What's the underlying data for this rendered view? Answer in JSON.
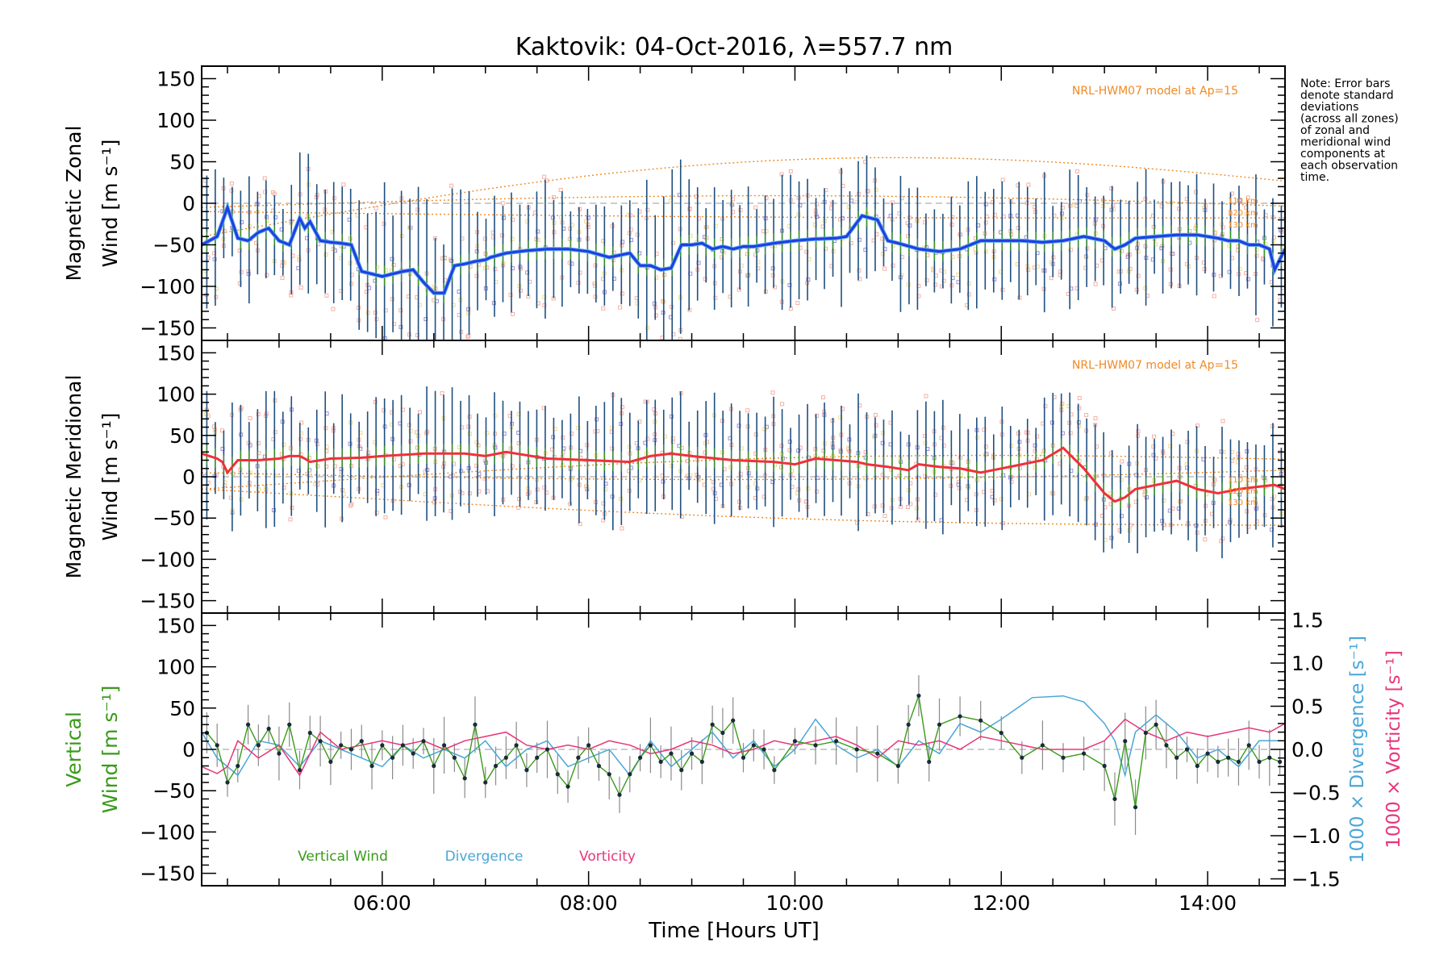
{
  "chart_data": {
    "type": "line",
    "title": "Kaktovik: 04-Oct-2016, λ=557.7 nm",
    "xlabel": "Time [Hours UT]",
    "xlim": [
      4.25,
      14.75
    ],
    "xticks": [
      6,
      8,
      10,
      12,
      14
    ],
    "xtick_labels": [
      "06:00",
      "08:00",
      "10:00",
      "12:00",
      "14:00"
    ],
    "note": [
      "Note: Error bars",
      "denote standard",
      "deviations",
      "(across all zones)",
      "of zonal and",
      "meridional wind",
      "components at",
      "each observation",
      "time."
    ],
    "model_label": "NRL-HWM07 model at Ap=15",
    "altitudes": [
      "110 km",
      "120 km",
      "130 km"
    ],
    "legend": [
      "Vertical Wind",
      "Divergence",
      "Vorticity"
    ],
    "colors": {
      "zonal": "#1f3fe0",
      "zonal_light": "#5aa9f0",
      "meridional": "#f0303a",
      "vertical": "#3a9a1a",
      "divergence": "#4aa6d6",
      "vorticity": "#e8357a",
      "model": "#f08a24",
      "errbar": "#1f4f7f",
      "scatter_pink": "#f7b0a3",
      "scatter_purple": "#9a90d8",
      "scatter_yellow": "#f2dc86"
    },
    "panels": [
      {
        "ylabel": [
          "Magnetic Zonal",
          "Wind [m s⁻¹]"
        ],
        "ylim": [
          -165,
          165
        ],
        "yticks": [
          150,
          100,
          50,
          0,
          -50,
          -100,
          -150
        ],
        "ytick_labels": [
          "150",
          "100",
          "50",
          "0",
          "−50",
          "−100",
          "−150"
        ]
      },
      {
        "ylabel": [
          "Magnetic Meridional",
          "Wind [m s⁻¹]"
        ],
        "ylim": [
          -165,
          165
        ],
        "yticks": [
          150,
          100,
          50,
          0,
          -50,
          -100,
          -150
        ],
        "ytick_labels": [
          "150",
          "100",
          "50",
          "0",
          "−50",
          "−100",
          "−150"
        ]
      },
      {
        "ylabel": [
          "Vertical",
          "Wind [m s⁻¹]"
        ],
        "ylim": [
          -165,
          165
        ],
        "yticks": [
          150,
          100,
          50,
          0,
          -50,
          -100,
          -150
        ],
        "ytick_labels": [
          "150",
          "100",
          "50",
          "0",
          "−50",
          "−100",
          "−150"
        ],
        "y2label_div": "1000 × Divergence [s⁻¹]",
        "y2label_vor": "1000 × Vorticity [s⁻¹]",
        "y2lim": [
          -1.58,
          1.58
        ],
        "y2ticks": [
          1.5,
          1.0,
          0.5,
          0.0,
          -0.5,
          -1.0,
          -1.5
        ],
        "y2tick_labels": [
          "1.5",
          "1.0",
          "0.5",
          "0.0",
          "−0.5",
          "−1.0",
          "−1.5"
        ]
      }
    ],
    "series": [
      {
        "name": "Magnetic Zonal Wind",
        "x": [
          4.25,
          4.4,
          4.5,
          4.6,
          4.7,
          4.8,
          4.9,
          5.0,
          5.1,
          5.2,
          5.25,
          5.3,
          5.4,
          5.5,
          5.6,
          5.7,
          5.8,
          5.9,
          6.0,
          6.1,
          6.2,
          6.3,
          6.4,
          6.5,
          6.6,
          6.7,
          6.8,
          6.9,
          7.0,
          7.05,
          7.2,
          7.4,
          7.6,
          7.8,
          8.0,
          8.2,
          8.4,
          8.5,
          8.6,
          8.7,
          8.8,
          8.9,
          9.0,
          9.1,
          9.2,
          9.3,
          9.4,
          9.5,
          9.6,
          9.8,
          10.0,
          10.2,
          10.4,
          10.5,
          10.65,
          10.8,
          10.9,
          11.0,
          11.2,
          11.4,
          11.6,
          11.8,
          12.0,
          12.2,
          12.4,
          12.6,
          12.8,
          13.0,
          13.1,
          13.2,
          13.3,
          13.5,
          13.7,
          13.9,
          14.1,
          14.2,
          14.3,
          14.4,
          14.5,
          14.6,
          14.65,
          14.75
        ],
        "y": [
          -50,
          -40,
          -5,
          -42,
          -45,
          -35,
          -30,
          -45,
          -50,
          -18,
          -30,
          -22,
          -45,
          -47,
          -48,
          -50,
          -82,
          -85,
          -88,
          -85,
          -82,
          -80,
          -95,
          -108,
          -108,
          -75,
          -73,
          -70,
          -68,
          -65,
          -60,
          -57,
          -55,
          -55,
          -58,
          -65,
          -60,
          -75,
          -75,
          -80,
          -78,
          -50,
          -50,
          -48,
          -55,
          -52,
          -55,
          -52,
          -52,
          -48,
          -45,
          -43,
          -42,
          -40,
          -15,
          -20,
          -45,
          -48,
          -55,
          -58,
          -55,
          -45,
          -45,
          -45,
          -47,
          -45,
          -40,
          -45,
          -55,
          -50,
          -42,
          -40,
          -38,
          -38,
          -42,
          -45,
          -45,
          -50,
          -50,
          -55,
          -80,
          -55
        ]
      },
      {
        "name": "Magnetic Meridional Wind",
        "x": [
          4.25,
          4.4,
          4.45,
          4.5,
          4.6,
          4.8,
          5.0,
          5.1,
          5.2,
          5.25,
          5.3,
          5.5,
          5.8,
          6.0,
          6.4,
          6.8,
          7.0,
          7.2,
          7.6,
          8.0,
          8.4,
          8.6,
          8.8,
          9.0,
          9.4,
          9.8,
          10.0,
          10.2,
          10.4,
          10.6,
          10.7,
          10.9,
          11.0,
          11.1,
          11.2,
          11.4,
          11.6,
          11.8,
          12.0,
          12.4,
          12.6,
          12.8,
          13.0,
          13.1,
          13.2,
          13.3,
          13.5,
          13.7,
          13.9,
          14.1,
          14.3,
          14.5,
          14.65,
          14.75
        ],
        "y": [
          28,
          22,
          18,
          5,
          20,
          20,
          22,
          25,
          25,
          22,
          18,
          22,
          23,
          25,
          28,
          28,
          25,
          30,
          22,
          20,
          18,
          25,
          28,
          25,
          20,
          18,
          15,
          22,
          20,
          18,
          15,
          12,
          10,
          8,
          15,
          12,
          10,
          5,
          10,
          20,
          35,
          10,
          -20,
          -30,
          -25,
          -15,
          -10,
          -5,
          -15,
          -20,
          -15,
          -12,
          -10,
          -15
        ]
      },
      {
        "name": "Vertical Wind",
        "x": [
          4.3,
          4.4,
          4.5,
          4.6,
          4.7,
          4.8,
          4.9,
          5.0,
          5.1,
          5.2,
          5.3,
          5.4,
          5.5,
          5.6,
          5.7,
          5.8,
          5.9,
          6.0,
          6.1,
          6.2,
          6.3,
          6.4,
          6.5,
          6.6,
          6.7,
          6.8,
          6.9,
          7.0,
          7.1,
          7.2,
          7.3,
          7.4,
          7.5,
          7.6,
          7.7,
          7.8,
          7.9,
          8.0,
          8.1,
          8.2,
          8.3,
          8.4,
          8.5,
          8.6,
          8.7,
          8.8,
          8.9,
          9.0,
          9.1,
          9.2,
          9.3,
          9.4,
          9.5,
          9.6,
          9.7,
          9.8,
          10.0,
          10.2,
          10.4,
          10.6,
          10.8,
          11.0,
          11.1,
          11.2,
          11.3,
          11.4,
          11.6,
          11.8,
          12.0,
          12.2,
          12.4,
          12.6,
          12.8,
          13.0,
          13.1,
          13.2,
          13.3,
          13.4,
          13.5,
          13.6,
          13.7,
          13.8,
          13.9,
          14.0,
          14.1,
          14.2,
          14.3,
          14.4,
          14.5,
          14.6,
          14.7
        ],
        "y": [
          20,
          5,
          -40,
          -20,
          30,
          5,
          25,
          -5,
          30,
          -25,
          20,
          10,
          -15,
          5,
          0,
          10,
          -20,
          5,
          -10,
          5,
          -5,
          10,
          -20,
          5,
          -10,
          -35,
          30,
          -40,
          -20,
          -10,
          5,
          -25,
          -10,
          0,
          -30,
          -45,
          -10,
          5,
          -20,
          -30,
          -55,
          -30,
          -10,
          5,
          -15,
          -5,
          -25,
          -5,
          -15,
          30,
          20,
          35,
          -10,
          5,
          0,
          -25,
          10,
          5,
          10,
          0,
          -5,
          -20,
          30,
          65,
          -15,
          30,
          40,
          35,
          20,
          -10,
          5,
          -10,
          -5,
          -20,
          -60,
          10,
          -70,
          20,
          30,
          5,
          -10,
          0,
          -20,
          -5,
          -15,
          -10,
          -15,
          5,
          -15,
          -10,
          -15
        ]
      },
      {
        "name": "Divergence",
        "x": [
          4.25,
          4.4,
          4.6,
          4.8,
          5.0,
          5.2,
          5.4,
          5.6,
          5.8,
          6.0,
          6.2,
          6.4,
          6.6,
          6.8,
          7.0,
          7.2,
          7.4,
          7.6,
          7.8,
          8.0,
          8.2,
          8.4,
          8.6,
          8.8,
          9.0,
          9.2,
          9.4,
          9.6,
          9.8,
          10.0,
          10.2,
          10.4,
          10.6,
          10.8,
          11.0,
          11.2,
          11.4,
          11.6,
          11.8,
          12.0,
          12.3,
          12.6,
          12.8,
          13.0,
          13.1,
          13.2,
          13.3,
          13.5,
          13.7,
          13.9,
          14.1,
          14.3,
          14.5,
          14.7
        ],
        "y": [
          0.2,
          -0.1,
          -0.3,
          0.1,
          0.05,
          -0.2,
          0.1,
          0.0,
          -0.1,
          -0.2,
          0.05,
          -0.1,
          0.0,
          -0.1,
          0.1,
          -0.2,
          0.0,
          0.1,
          -0.2,
          -0.1,
          0.0,
          -0.3,
          0.1,
          -0.2,
          0.0,
          0.2,
          -0.1,
          0.1,
          -0.2,
          0.0,
          0.35,
          0.05,
          -0.1,
          0.0,
          -0.2,
          0.1,
          -0.05,
          0.3,
          0.2,
          0.35,
          0.6,
          0.62,
          0.55,
          0.3,
          0.1,
          -0.3,
          0.2,
          0.4,
          0.2,
          -0.1,
          0.0,
          -0.2,
          0.1,
          0.1
        ]
      },
      {
        "name": "Vorticity",
        "x": [
          4.25,
          4.4,
          4.5,
          4.6,
          4.8,
          5.0,
          5.2,
          5.4,
          5.6,
          5.8,
          6.0,
          6.2,
          6.4,
          6.6,
          6.8,
          7.0,
          7.2,
          7.4,
          7.6,
          7.8,
          8.0,
          8.2,
          8.4,
          8.6,
          8.8,
          9.0,
          9.2,
          9.4,
          9.6,
          9.8,
          10.0,
          10.2,
          10.4,
          10.6,
          10.8,
          11.0,
          11.2,
          11.4,
          11.6,
          11.8,
          12.0,
          12.4,
          12.8,
          13.0,
          13.2,
          13.4,
          13.6,
          13.8,
          14.0,
          14.2,
          14.4,
          14.6,
          14.75
        ],
        "y": [
          -0.2,
          -0.28,
          -0.2,
          0.1,
          -0.1,
          0.05,
          -0.3,
          0.2,
          0.0,
          0.05,
          0.1,
          0.05,
          0.1,
          0.0,
          0.1,
          0.15,
          0.2,
          0.05,
          0.0,
          0.05,
          0.0,
          0.1,
          0.05,
          -0.05,
          0.0,
          0.1,
          0.05,
          -0.05,
          0.0,
          0.1,
          0.05,
          0.1,
          0.15,
          0.05,
          -0.1,
          0.1,
          0.05,
          0.1,
          0.0,
          0.15,
          0.1,
          0.0,
          0.0,
          0.1,
          0.35,
          0.2,
          0.1,
          0.2,
          0.15,
          0.2,
          0.25,
          0.2,
          0.3
        ]
      }
    ]
  }
}
